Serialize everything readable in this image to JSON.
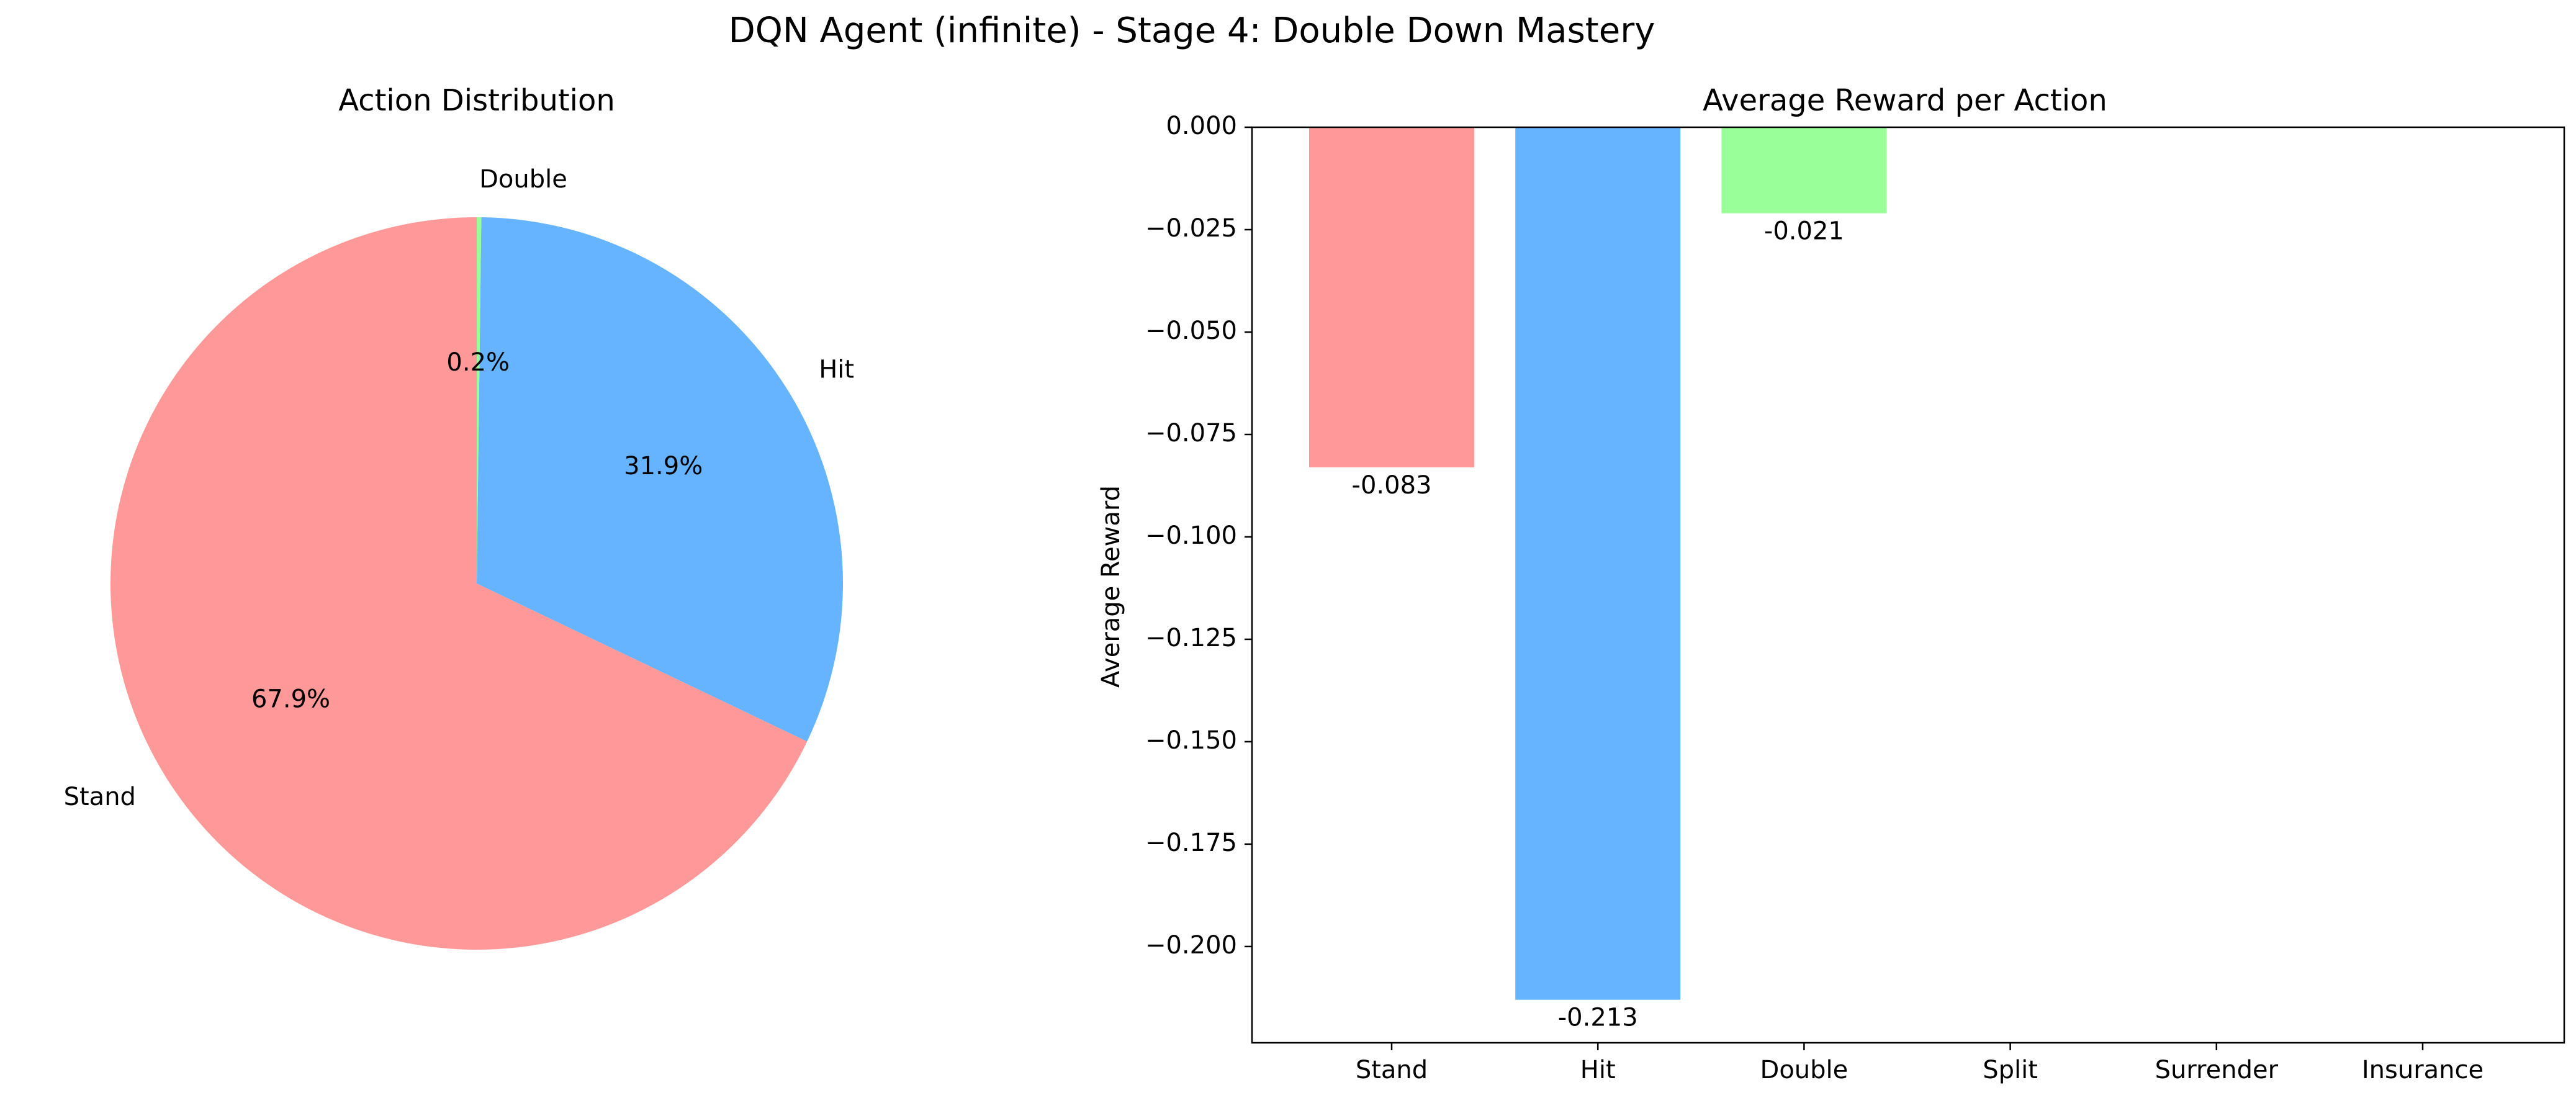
{
  "figure": {
    "title": "DQN Agent (infinite) - Stage 4: Double Down Mastery"
  },
  "chart_data": [
    {
      "type": "pie",
      "title": "Action Distribution",
      "start_angle_deg": 90,
      "direction": "counterclockwise",
      "slices": [
        {
          "label": "Stand",
          "value": 67.9,
          "pct_label": "67.9%",
          "color": "#ff9999"
        },
        {
          "label": "Hit",
          "value": 31.9,
          "pct_label": "31.9%",
          "color": "#66b3ff"
        },
        {
          "label": "Double",
          "value": 0.2,
          "pct_label": "0.2%",
          "color": "#99ff99"
        }
      ]
    },
    {
      "type": "bar",
      "title": "Average Reward per Action",
      "xlabel": "",
      "ylabel": "Average Reward",
      "categories": [
        "Stand",
        "Hit",
        "Double",
        "Split",
        "Surrender",
        "Insurance"
      ],
      "values": [
        -0.083,
        -0.213,
        -0.021,
        null,
        null,
        null
      ],
      "value_labels": [
        "-0.083",
        "-0.213",
        "-0.021",
        "",
        "",
        ""
      ],
      "colors": [
        "#ff9999",
        "#66b3ff",
        "#99ff99",
        "#ffcc99",
        "#ff99cc",
        "#c2c2f0"
      ],
      "ylim": [
        -0.2235,
        0.0
      ],
      "yticks": [
        0.0,
        -0.025,
        -0.05,
        -0.075,
        -0.1,
        -0.125,
        -0.15,
        -0.175,
        -0.2
      ],
      "ytick_labels": [
        "0.000",
        "−0.025",
        "−0.050",
        "−0.075",
        "−0.100",
        "−0.125",
        "−0.150",
        "−0.175",
        "−0.200"
      ],
      "grid": false,
      "legend": "none"
    }
  ]
}
